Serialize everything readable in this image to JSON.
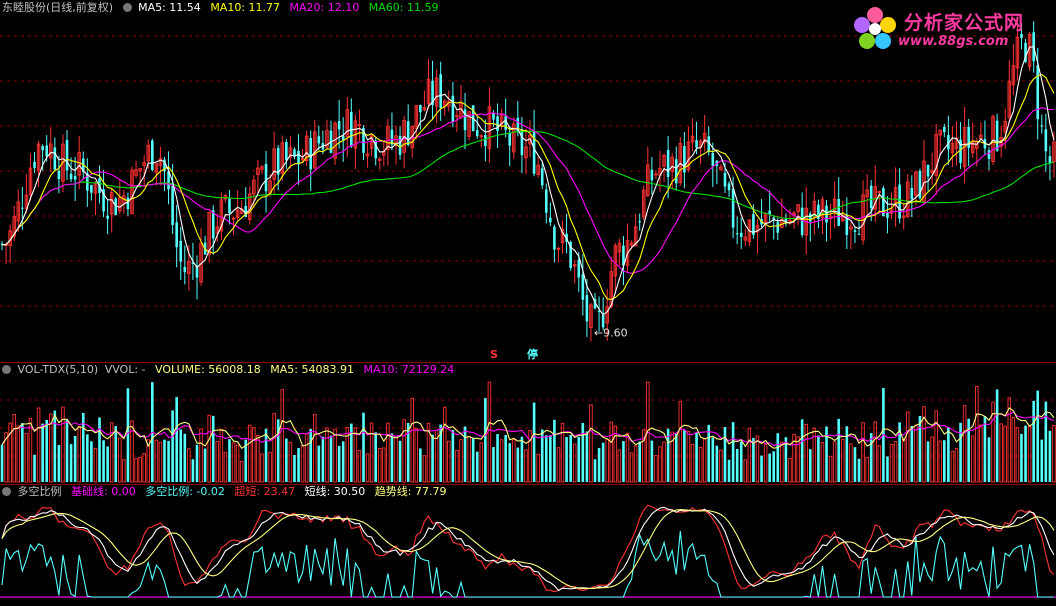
{
  "price_header": {
    "stock": "东睦股份(日线,前复权)",
    "ma5": "MA5: 11.54",
    "ma10": "MA10: 11.77",
    "ma20": "MA20: 12.10",
    "ma60": "MA60: 11.59"
  },
  "vol_header": {
    "name": "VOL-TDX(5,10)",
    "vvol": "VVOL: -",
    "volume": "VOLUME: 56008.18",
    "ma5": "MA5: 54083.91",
    "ma10": "MA10: 72129.24"
  },
  "ind_header": {
    "name": "多空比例",
    "base": "基础线: 0.00",
    "ratio": "多空比例: -0.02",
    "super_short": "超短: 23.47",
    "short": "短线: 30.50",
    "trend": "趋势线: 77.79"
  },
  "annotations": {
    "low_label": "←9.60",
    "s_mark": "S",
    "stop_mark": "停"
  },
  "logo": {
    "brand": "分析家公式网",
    "site": "www.88gs.com"
  },
  "colors": {
    "up": "#ff3232",
    "down": "#54ffff",
    "ma5": "#ffffff",
    "ma10": "#ffff00",
    "ma20": "#ff00ff",
    "ma60": "#00e000",
    "grid": "#8b0000",
    "header_label": "#c0c0c0",
    "trend": "#ffff80",
    "short": "#ffffff",
    "super_short": "#ff3232",
    "ratio": "#54ffff",
    "base": "#ff00ff"
  },
  "chart_data": [
    {
      "type": "candlestick",
      "title": "东睦股份(日线,前复权)",
      "ylim": [
        9.4,
        14.6
      ],
      "anchors": [
        [
          0,
          11.0
        ],
        [
          10,
          12.6
        ],
        [
          17,
          12.2
        ],
        [
          28,
          11.7
        ],
        [
          38,
          12.5
        ],
        [
          45,
          10.6
        ],
        [
          55,
          11.5
        ],
        [
          70,
          12.3
        ],
        [
          85,
          12.9
        ],
        [
          95,
          12.6
        ],
        [
          108,
          13.4
        ],
        [
          118,
          12.9
        ],
        [
          130,
          12.5
        ],
        [
          138,
          11.0
        ],
        [
          146,
          9.65
        ],
        [
          152,
          10.9
        ],
        [
          162,
          12.2
        ],
        [
          172,
          12.5
        ],
        [
          182,
          11.3
        ],
        [
          195,
          11.4
        ],
        [
          210,
          11.5
        ],
        [
          222,
          11.7
        ],
        [
          232,
          12.5
        ],
        [
          244,
          12.7
        ],
        [
          252,
          14.2
        ],
        [
          258,
          12.3
        ]
      ],
      "low_marker": 9.6
    },
    {
      "type": "bar",
      "title": "VOL-TDX(5,10)",
      "ylim": [
        0,
        100000
      ]
    },
    {
      "type": "line",
      "title": "多空比例",
      "ylim": [
        -5,
        100
      ]
    }
  ]
}
